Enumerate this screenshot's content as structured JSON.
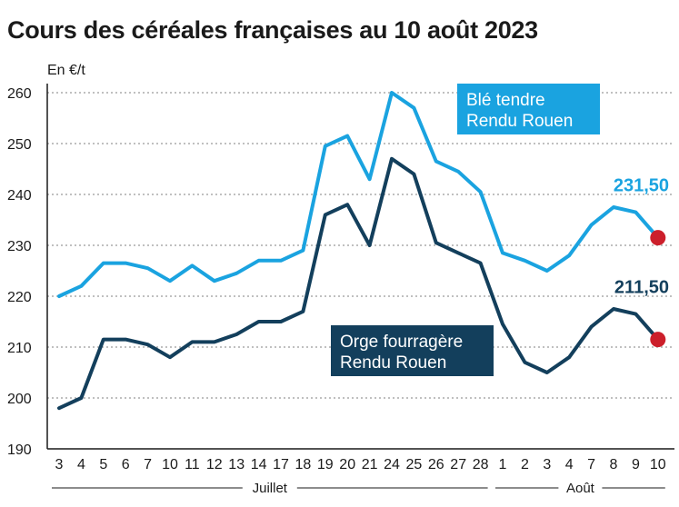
{
  "title": "Cours des céréales françaises au 10 août 2023",
  "chart_data": {
    "type": "line",
    "title": "Cours des céréales françaises au 10 août 2023",
    "ylabel": "En €/t",
    "xlabel": "",
    "ylim": [
      190,
      260
    ],
    "yticks": [
      190,
      200,
      210,
      220,
      230,
      240,
      250,
      260
    ],
    "grid": "horizontal dotted",
    "categories": [
      "3",
      "4",
      "5",
      "6",
      "7",
      "10",
      "11",
      "12",
      "13",
      "14",
      "17",
      "18",
      "19",
      "20",
      "21",
      "24",
      "25",
      "26",
      "27",
      "28",
      "1",
      "2",
      "3",
      "4",
      "7",
      "8",
      "9",
      "10"
    ],
    "category_groups": [
      {
        "label": "Juillet",
        "from": 0,
        "to": 19
      },
      {
        "label": "Août",
        "from": 20,
        "to": 27
      }
    ],
    "series": [
      {
        "name": "Blé tendre Rendu Rouen",
        "legend_lines": [
          "Blé tendre",
          "Rendu Rouen"
        ],
        "color": "#1aa3e0",
        "values": [
          220,
          222,
          226.5,
          226.5,
          225.5,
          223,
          226,
          223,
          224.5,
          227,
          227,
          229,
          249.5,
          251.5,
          243,
          260,
          257,
          246.5,
          244.5,
          240.5,
          228.5,
          227,
          225,
          228,
          234,
          237.5,
          236.5,
          231.5
        ],
        "end_label": "231,50"
      },
      {
        "name": "Orge fourragère Rendu Rouen",
        "legend_lines": [
          "Orge fourragère",
          "Rendu Rouen"
        ],
        "color": "#133f5c",
        "values": [
          198,
          200,
          211.5,
          211.5,
          210.5,
          208,
          211,
          211,
          212.5,
          215,
          215,
          217,
          236,
          238,
          230,
          247,
          244,
          230.5,
          228.5,
          226.5,
          214.5,
          207,
          205,
          208,
          214,
          217.5,
          216.5,
          211.5
        ],
        "end_label": "211,50"
      }
    ],
    "end_marker_color": "#cc1f2b"
  }
}
